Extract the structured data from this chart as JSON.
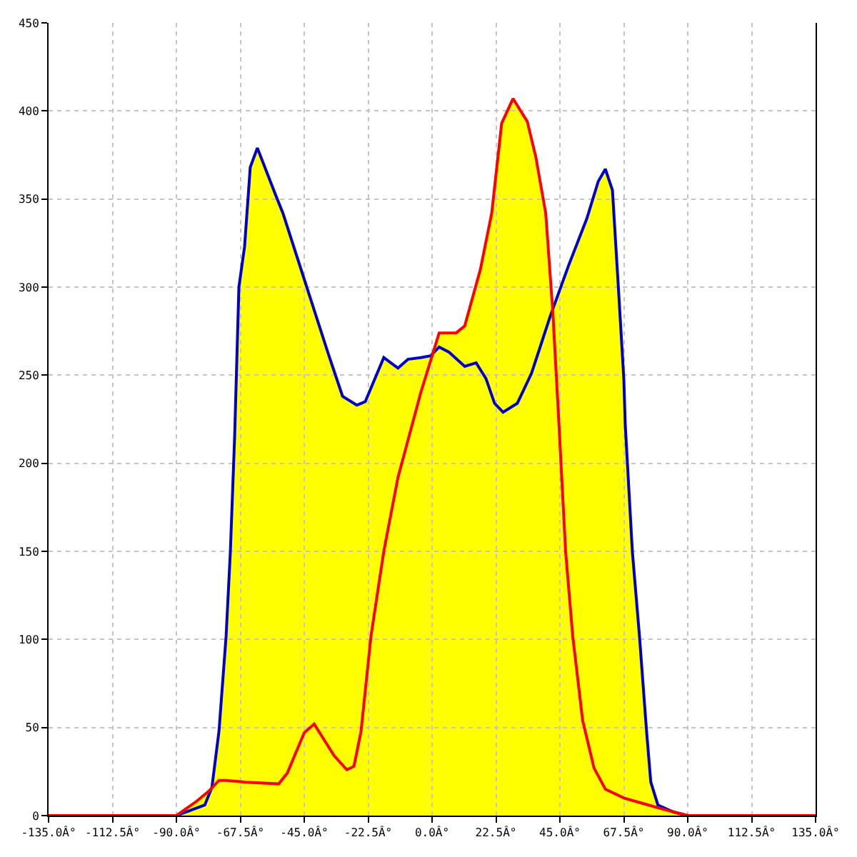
{
  "chart_data": {
    "type": "line",
    "xlim": [
      -135,
      135
    ],
    "xticks": [
      {
        "value": -135,
        "label": "-135.0Â°"
      },
      {
        "value": -112.5,
        "label": "-112.5Â°"
      },
      {
        "value": -90,
        "label": "-90.0Â°"
      },
      {
        "value": -67.5,
        "label": "-67.5Â°"
      },
      {
        "value": -45,
        "label": "-45.0Â°"
      },
      {
        "value": -22.5,
        "label": "-22.5Â°"
      },
      {
        "value": 0,
        "label": "0.0Â°"
      },
      {
        "value": 22.5,
        "label": "22.5Â°"
      },
      {
        "value": 45,
        "label": "45.0Â°"
      },
      {
        "value": 67.5,
        "label": "67.5Â°"
      },
      {
        "value": 90,
        "label": "90.0Â°"
      },
      {
        "value": 112.5,
        "label": "112.5Â°"
      },
      {
        "value": 135,
        "label": "135.0Â°"
      }
    ],
    "ylim": [
      0,
      450
    ],
    "yticks": [
      0,
      50,
      100,
      150,
      200,
      250,
      300,
      350,
      400,
      450
    ],
    "grid": true,
    "series": [
      {
        "type": "area",
        "color": "#ffff00",
        "x": [
          -90,
          -83,
          -78.5,
          -77.5,
          -75,
          -72.5,
          -71,
          -69.5,
          -68,
          -66,
          -64,
          -61.5,
          -55,
          -52.5,
          -44.5,
          -36.5,
          -31.5,
          -26.5,
          -23.5,
          -17,
          -12,
          -8.5,
          -4,
          -0.5,
          0.5,
          2.5,
          8.5,
          11.5,
          17,
          21,
          24.5,
          28.5,
          33.5,
          36.5,
          40,
          42.5,
          48,
          54.5,
          58.5,
          61,
          63.5,
          65.5,
          67.5,
          68,
          70.5,
          73,
          75.5,
          77,
          79.5,
          85,
          90
        ],
        "values": [
          0,
          8,
          14,
          16,
          48,
          102,
          150,
          215,
          300,
          323,
          368,
          379,
          352,
          342,
          302,
          262,
          238,
          233,
          235,
          260,
          254,
          259,
          260,
          261,
          264,
          274,
          274,
          278,
          310,
          342,
          393,
          407,
          394,
          374,
          342,
          287,
          312,
          339,
          360,
          367,
          355,
          302,
          248,
          222,
          150,
          102,
          48,
          19,
          6,
          2,
          0
        ]
      },
      {
        "color": "#0000cc",
        "x": [
          -90,
          -85,
          -80,
          -77.5,
          -75,
          -72.5,
          -71,
          -69.5,
          -68,
          -66,
          -64,
          -61.5,
          -55,
          -52.5,
          -44.5,
          -36.5,
          -31.5,
          -26.5,
          -23.5,
          -17,
          -12,
          -8.5,
          -4,
          -0.5,
          2.5,
          6,
          11.5,
          15.5,
          19,
          22,
          25,
          30,
          35,
          41.5,
          48,
          54.5,
          58.5,
          61,
          63.5,
          65.5,
          67.5,
          68,
          70.5,
          73,
          75.5,
          77,
          79.5,
          85,
          90
        ],
        "values": [
          0,
          3,
          6,
          16,
          48,
          102,
          150,
          215,
          300,
          323,
          368,
          379,
          352,
          342,
          302,
          262,
          238,
          233,
          235,
          260,
          254,
          259,
          260,
          261,
          266,
          263,
          255,
          257,
          248,
          234,
          229,
          234,
          251,
          283,
          312,
          339,
          360,
          367,
          355,
          302,
          248,
          222,
          150,
          102,
          48,
          19,
          6,
          2,
          0
        ]
      },
      {
        "color": "#ff0000",
        "x": [
          -135,
          -90,
          -83,
          -78.5,
          -75,
          -72.5,
          -65.5,
          -54,
          -51,
          -45,
          -41.5,
          -34.5,
          -30,
          -27.5,
          -25,
          -21.5,
          -17,
          -12,
          -7,
          -4,
          2.5,
          8.5,
          11.5,
          17,
          21,
          24.5,
          28.5,
          33.5,
          36.5,
          40,
          42.5,
          44.5,
          47,
          49.5,
          53,
          57,
          61,
          67.5,
          74,
          80.5,
          90,
          135
        ],
        "values": [
          0,
          0,
          8,
          14,
          20,
          20,
          19,
          18,
          24,
          47,
          52,
          34,
          26,
          28,
          48,
          102,
          150,
          192,
          222,
          240,
          274,
          274,
          278,
          310,
          342,
          393,
          407,
          394,
          374,
          342,
          286,
          227,
          150,
          102,
          54,
          27,
          15,
          10,
          7,
          4,
          0,
          0
        ]
      }
    ]
  }
}
